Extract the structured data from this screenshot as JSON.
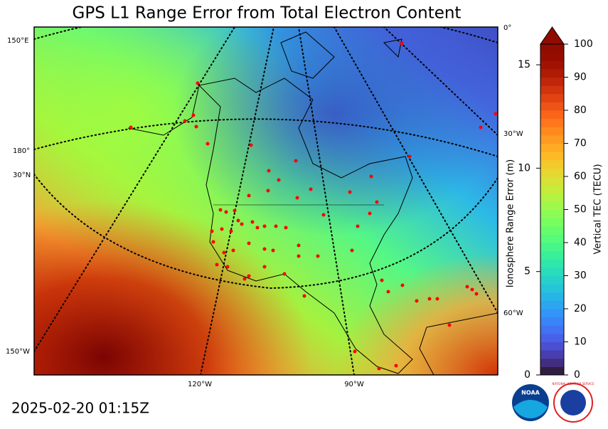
{
  "title": "GPS L1 Range Error from Total Electron Content",
  "timestamp": "2025-02-20 01:15Z",
  "map": {
    "graticule_labels": [
      "150°E",
      "180°",
      "30°N",
      "150°W",
      "120°W",
      "90°W",
      "0°",
      "30°W",
      "60°W"
    ]
  },
  "colorbar": {
    "left_label": "Ionosphere Range Error (m)",
    "right_label": "Vertical TEC (TECU)",
    "left_lim": [
      0,
      16
    ],
    "left_ticks": [
      0,
      5,
      10,
      15
    ],
    "right_lim": [
      0,
      100
    ],
    "right_ticks": [
      0,
      10,
      20,
      30,
      40,
      50,
      60,
      70,
      80,
      90,
      100
    ]
  },
  "logos": [
    "NOAA",
    "NATIONAL WEATHER SERVICE"
  ]
}
